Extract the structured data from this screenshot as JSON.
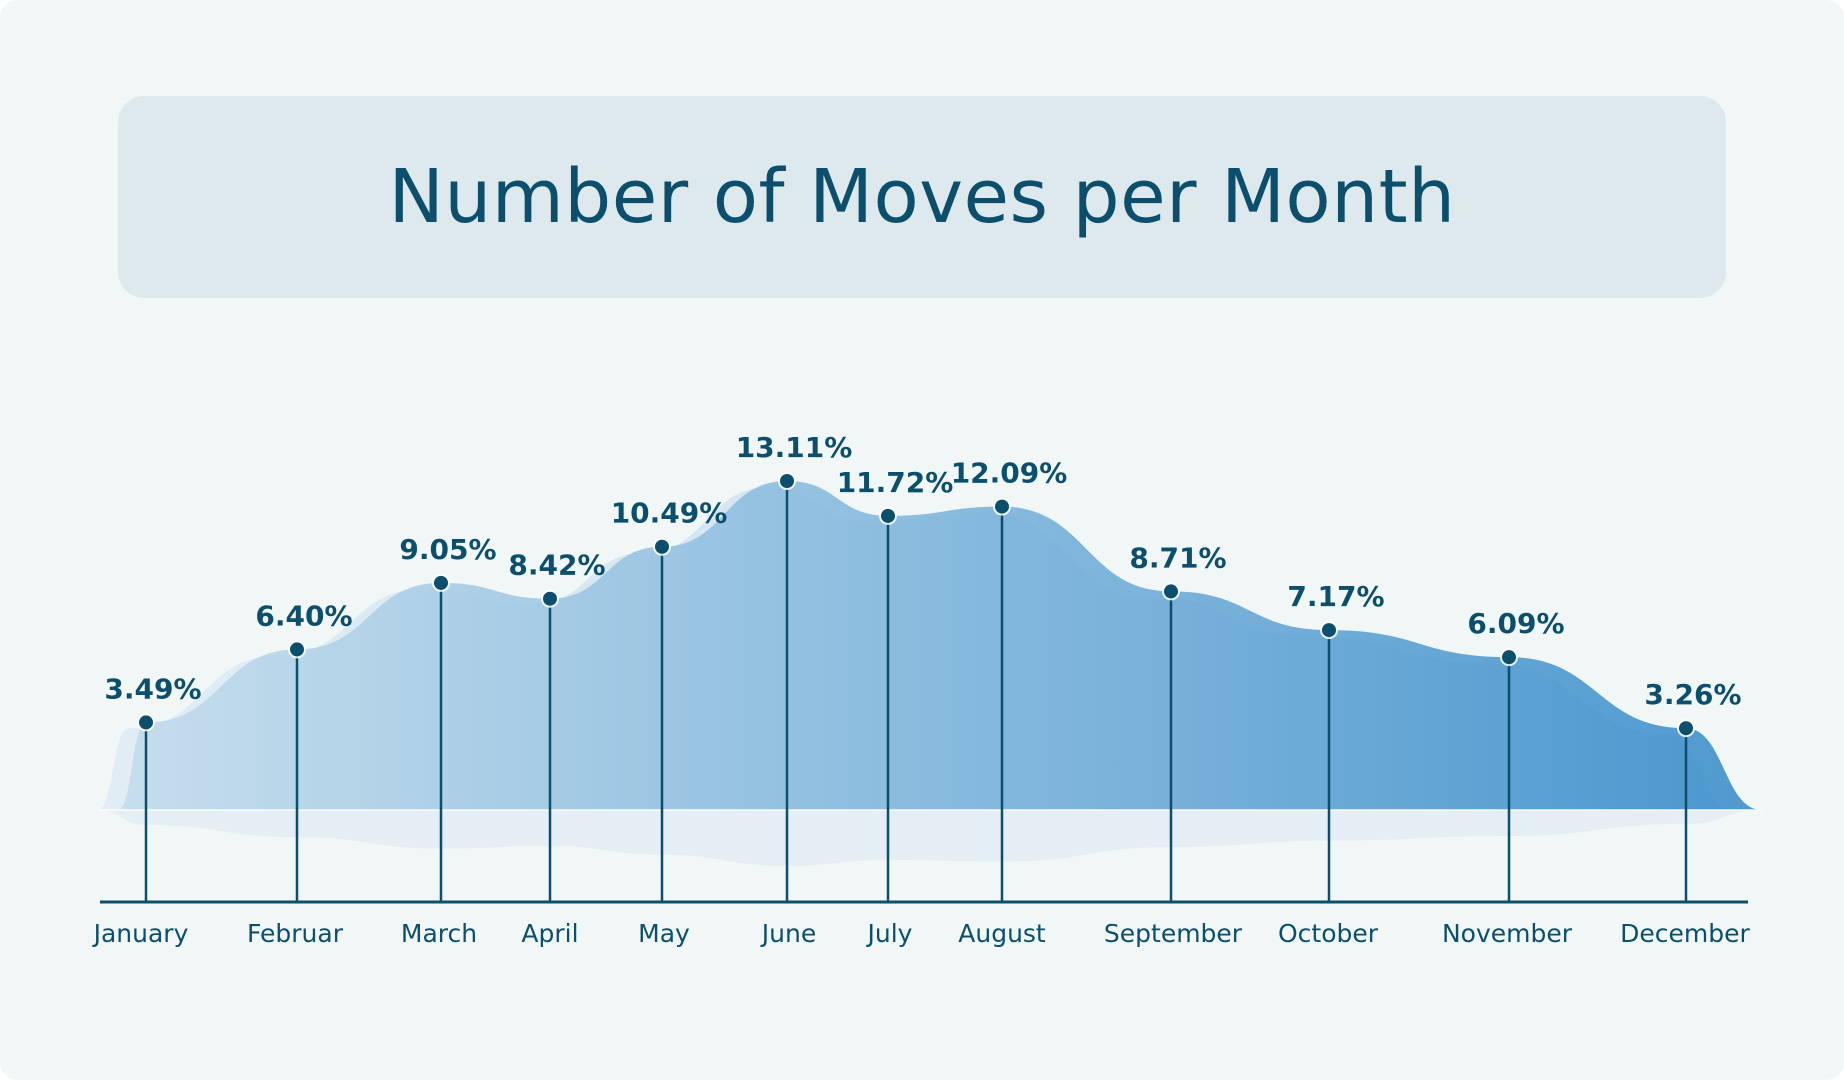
{
  "title": "Number of Moves per Month",
  "colors": {
    "background": "#f1f6f7",
    "title_box": "#dee9ed",
    "text": "#0c4f6d",
    "area_start": "#c3dcec",
    "area_end": "#3c8fcb",
    "axis": "#0c4f6d"
  },
  "chart_data": {
    "type": "area",
    "title": "Number of Moves per Month",
    "categories": [
      "January",
      "Februar",
      "March",
      "April",
      "May",
      "June",
      "July",
      "August",
      "September",
      "October",
      "November",
      "December"
    ],
    "values": [
      3.49,
      6.4,
      9.05,
      8.42,
      10.49,
      13.11,
      11.72,
      12.09,
      8.71,
      7.17,
      6.09,
      3.26
    ],
    "labels": [
      "3.49%",
      "6.40%",
      "9.05%",
      "8.42%",
      "10.49%",
      "13.11%",
      "11.72%",
      "12.09%",
      "8.71%",
      "7.17%",
      "6.09%",
      "3.26%"
    ],
    "unit": "%",
    "ylim": [
      0,
      13.11
    ],
    "grid": false,
    "legend": "none"
  }
}
